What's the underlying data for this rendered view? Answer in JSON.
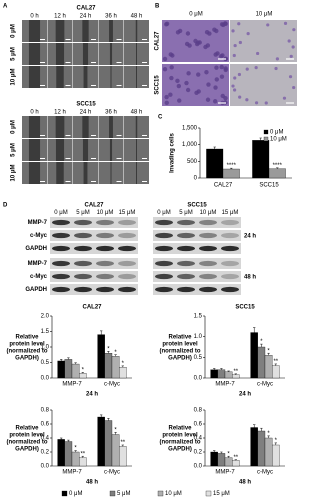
{
  "panel_labels": [
    "A",
    "B",
    "C",
    "D"
  ],
  "panel_a": {
    "blocks": [
      {
        "title": "CAL27",
        "columns": [
          "0 h",
          "12 h",
          "24 h",
          "36 h",
          "48 h"
        ],
        "rows": [
          "0 μM",
          "5 μM",
          "10 μM"
        ]
      },
      {
        "title": "SCC15",
        "columns": [
          "0 h",
          "12 h",
          "24 h",
          "36 h",
          "48 h"
        ],
        "rows": [
          "0 μM",
          "5 μM",
          "10 μM"
        ]
      }
    ]
  },
  "panel_b": {
    "columns": [
      "0 μM",
      "10 μM"
    ],
    "rows": [
      "CAL27",
      "SCC15"
    ]
  },
  "panel_d": {
    "groups": [
      "CAL27",
      "SCC15"
    ],
    "lanes": [
      "0 μM",
      "5 μM",
      "10 μM",
      "15 μM"
    ],
    "blots": [
      {
        "time": "24 h",
        "rows": [
          "MMP-7",
          "c-Myc",
          "GAPDH"
        ]
      },
      {
        "time": "48 h",
        "rows": [
          "MMP-7",
          "c-Myc",
          "GAPDH"
        ]
      }
    ]
  },
  "chart_data": [
    {
      "type": "bar",
      "ylabel": "Invading cells",
      "categories": [
        "CAL27",
        "SCC15"
      ],
      "series": [
        {
          "name": "0 μM",
          "color": "#000000",
          "values": [
            870,
            1130
          ],
          "errors": [
            60,
            70
          ],
          "significance": [
            null,
            null
          ]
        },
        {
          "name": "10 μM",
          "color": "#9a9a9a",
          "values": [
            270,
            280
          ],
          "errors": [
            25,
            25
          ],
          "significance": [
            "****",
            "****"
          ]
        }
      ],
      "ylim": [
        0,
        1500
      ],
      "yticks": [
        0,
        500,
        {
          "value": 1000,
          "label": "1,000"
        },
        {
          "value": 1500,
          "label": "1,500"
        }
      ],
      "legend": "upper right"
    },
    {
      "type": "bar",
      "title": "CAL27",
      "ylabel": [
        "Relative",
        "protein level",
        "(normalized to",
        "GAPDH)"
      ],
      "xlabel": "24 h",
      "categories": [
        "MMP-7",
        "c-Myc"
      ],
      "series": [
        {
          "name": "0 μM",
          "color": "#000000",
          "values": [
            0.55,
            1.4
          ],
          "errors": [
            0.05,
            0.12
          ],
          "significance": [
            null,
            null
          ]
        },
        {
          "name": "5 μM",
          "color": "#7f7f7f",
          "values": [
            0.6,
            0.8
          ],
          "errors": [
            0.05,
            0.06
          ],
          "significance": [
            null,
            "*"
          ]
        },
        {
          "name": "10 μM",
          "color": "#b0b0b0",
          "values": [
            0.45,
            0.7
          ],
          "errors": [
            0.04,
            0.05
          ],
          "significance": [
            null,
            "*"
          ]
        },
        {
          "name": "15 μM",
          "color": "#e0e0e0",
          "values": [
            0.15,
            0.35
          ],
          "errors": [
            0.03,
            0.04
          ],
          "significance": [
            "*",
            "*"
          ]
        }
      ],
      "ylim": [
        0,
        2
      ],
      "yticks": [
        {
          "value": 0,
          "label": "0.0"
        },
        0.5,
        {
          "value": 1,
          "label": "1.0"
        },
        1.5,
        {
          "value": 2,
          "label": "2.0"
        }
      ]
    },
    {
      "type": "bar",
      "title": "SCC15",
      "ylabel": [
        "Relative",
        "protein level",
        "(normalized to",
        "GAPDH)"
      ],
      "xlabel": "24 h",
      "categories": [
        "MMP-7",
        "c-Myc"
      ],
      "series": [
        {
          "name": "0 μM",
          "color": "#000000",
          "values": [
            0.2,
            1.1
          ],
          "errors": [
            0.03,
            0.12
          ],
          "significance": [
            null,
            null
          ]
        },
        {
          "name": "5 μM",
          "color": "#7f7f7f",
          "values": [
            0.2,
            0.75
          ],
          "errors": [
            0.03,
            0.07
          ],
          "significance": [
            null,
            "*"
          ]
        },
        {
          "name": "10 μM",
          "color": "#b0b0b0",
          "values": [
            0.15,
            0.55
          ],
          "errors": [
            0.02,
            0.05
          ],
          "significance": [
            null,
            "*"
          ]
        },
        {
          "name": "15 μM",
          "color": "#e0e0e0",
          "values": [
            0.08,
            0.3
          ],
          "errors": [
            0.02,
            0.04
          ],
          "significance": [
            "**",
            "**"
          ]
        }
      ],
      "ylim": [
        0,
        1.5
      ],
      "yticks": [
        {
          "value": 0,
          "label": "0.0"
        },
        0.5,
        {
          "value": 1,
          "label": "1.0"
        },
        1.5
      ]
    },
    {
      "type": "bar",
      "ylabel": [
        "Relative",
        "protein level",
        "(normalized to",
        "GAPDH)"
      ],
      "xlabel": "48 h",
      "categories": [
        "MMP-7",
        "c-Myc"
      ],
      "series": [
        {
          "name": "0 μM",
          "color": "#000000",
          "values": [
            0.38,
            0.7
          ],
          "errors": [
            0.02,
            0.03
          ],
          "significance": [
            null,
            null
          ]
        },
        {
          "name": "5 μM",
          "color": "#7f7f7f",
          "values": [
            0.35,
            0.65
          ],
          "errors": [
            0.02,
            0.03
          ],
          "significance": [
            null,
            null
          ]
        },
        {
          "name": "10 μM",
          "color": "#b0b0b0",
          "values": [
            0.2,
            0.45
          ],
          "errors": [
            0.02,
            0.03
          ],
          "significance": [
            "*",
            "*"
          ]
        },
        {
          "name": "15 μM",
          "color": "#e0e0e0",
          "values": [
            0.12,
            0.28
          ],
          "errors": [
            0.02,
            0.02
          ],
          "significance": [
            "**",
            "**"
          ]
        }
      ],
      "ylim": [
        0,
        0.8
      ],
      "yticks": [
        {
          "value": 0,
          "label": "0.0"
        },
        0.2,
        0.4,
        0.6,
        0.8
      ]
    },
    {
      "type": "bar",
      "ylabel": [
        "Relative",
        "protein level",
        "(normalized to",
        "GAPDH)"
      ],
      "xlabel": "48 h",
      "categories": [
        "MMP-7",
        "c-Myc"
      ],
      "series": [
        {
          "name": "0 μM",
          "color": "#000000",
          "values": [
            0.2,
            0.55
          ],
          "errors": [
            0.02,
            0.04
          ],
          "significance": [
            null,
            null
          ]
        },
        {
          "name": "5 μM",
          "color": "#7f7f7f",
          "values": [
            0.18,
            0.5
          ],
          "errors": [
            0.02,
            0.04
          ],
          "significance": [
            null,
            null
          ]
        },
        {
          "name": "10 μM",
          "color": "#b0b0b0",
          "values": [
            0.12,
            0.4
          ],
          "errors": [
            0.02,
            0.03
          ],
          "significance": [
            "*",
            "*"
          ]
        },
        {
          "name": "15 μM",
          "color": "#e0e0e0",
          "values": [
            0.08,
            0.3
          ],
          "errors": [
            0.01,
            0.03
          ],
          "significance": [
            "**",
            "*"
          ]
        }
      ],
      "ylim": [
        0,
        0.8
      ],
      "yticks": [
        {
          "value": 0,
          "label": "0.0"
        },
        0.2,
        0.4,
        0.6,
        0.8
      ]
    }
  ]
}
